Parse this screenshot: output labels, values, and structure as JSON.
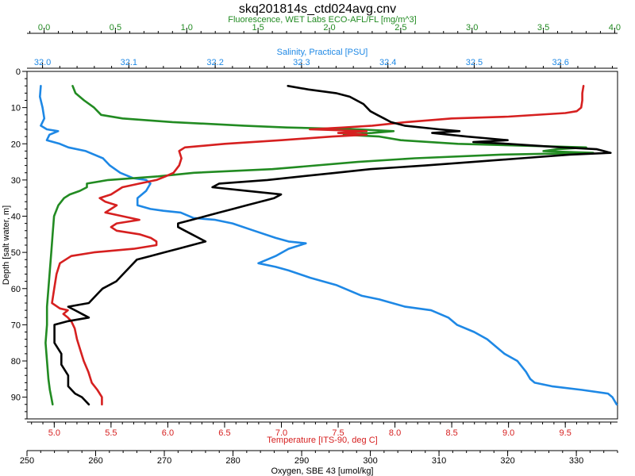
{
  "chart_data": {
    "type": "line",
    "title": "skq201814s_ctd024avg.cnv",
    "y_axis": {
      "label": "Depth [salt water, m]",
      "range": [
        0,
        96
      ],
      "inverted": true,
      "ticks": [
        0,
        10,
        20,
        30,
        40,
        50,
        60,
        70,
        80,
        90
      ]
    },
    "x_axes": [
      {
        "id": "fluorescence",
        "label": "Fluorescence, WET Labs ECO-AFL/FL [mg/m^3]",
        "position": "top-outer",
        "color": "#228b22",
        "range": [
          -0.12,
          4.02
        ],
        "ticks": [
          0.0,
          0.5,
          1.0,
          1.5,
          2.0,
          2.5,
          3.0,
          3.5,
          4.0
        ],
        "tick_labels": [
          "0.0",
          "0.5",
          "1.0",
          "1.5",
          "2.0",
          "2.5",
          "3.0",
          "3.5",
          "4.0"
        ]
      },
      {
        "id": "salinity",
        "label": "Salinity, Practical [PSU]",
        "position": "top-inner",
        "color": "#1e88e5",
        "range": [
          31.982,
          32.666
        ],
        "ticks": [
          32.0,
          32.1,
          32.2,
          32.3,
          32.4,
          32.5,
          32.6
        ],
        "tick_labels": [
          "32.0",
          "32.1",
          "32.2",
          "32.3",
          "32.4",
          "32.5",
          "32.6"
        ]
      },
      {
        "id": "temperature",
        "label": "Temperature [ITS-90, deg C]",
        "position": "bottom-inner",
        "color": "#d62020",
        "range": [
          4.76,
          9.96
        ],
        "ticks": [
          5.0,
          5.5,
          6.0,
          6.5,
          7.0,
          7.5,
          8.0,
          8.5,
          9.0,
          9.5
        ],
        "tick_labels": [
          "5.0",
          "5.5",
          "6.0",
          "6.5",
          "7.0",
          "7.5",
          "8.0",
          "8.5",
          "9.0",
          "9.5"
        ]
      },
      {
        "id": "oxygen",
        "label": "Oxygen, SBE 43 [umol/kg]",
        "position": "bottom-outer",
        "color": "#000000",
        "range": [
          250.0,
          336.0
        ],
        "ticks": [
          250,
          260,
          270,
          280,
          290,
          300,
          310,
          320,
          330
        ],
        "tick_labels": [
          "250",
          "260",
          "270",
          "280",
          "290",
          "300",
          "310",
          "320",
          "330"
        ]
      }
    ],
    "series": [
      {
        "axis": "salinity",
        "color": "#1e88e5",
        "points": [
          [
            31.998,
            4
          ],
          [
            31.997,
            7
          ],
          [
            32.0,
            10
          ],
          [
            32.002,
            13
          ],
          [
            31.998,
            15
          ],
          [
            32.005,
            16
          ],
          [
            32.018,
            16.5
          ],
          [
            32.008,
            17.5
          ],
          [
            32.005,
            19
          ],
          [
            32.02,
            20
          ],
          [
            32.03,
            21
          ],
          [
            32.05,
            22
          ],
          [
            32.07,
            24
          ],
          [
            32.078,
            26
          ],
          [
            32.09,
            28
          ],
          [
            32.105,
            29.5
          ],
          [
            32.12,
            30
          ],
          [
            32.125,
            31
          ],
          [
            32.12,
            33
          ],
          [
            32.11,
            35
          ],
          [
            32.11,
            37
          ],
          [
            32.125,
            38
          ],
          [
            32.14,
            38.5
          ],
          [
            32.16,
            39
          ],
          [
            32.175,
            40.5
          ],
          [
            32.2,
            41
          ],
          [
            32.22,
            42
          ],
          [
            32.245,
            44
          ],
          [
            32.27,
            46
          ],
          [
            32.285,
            47
          ],
          [
            32.305,
            47.5
          ],
          [
            32.285,
            49
          ],
          [
            32.27,
            51
          ],
          [
            32.26,
            52
          ],
          [
            32.25,
            53
          ],
          [
            32.27,
            54
          ],
          [
            32.285,
            55
          ],
          [
            32.31,
            57
          ],
          [
            32.34,
            59
          ],
          [
            32.37,
            62
          ],
          [
            32.39,
            63
          ],
          [
            32.42,
            65
          ],
          [
            32.45,
            66
          ],
          [
            32.47,
            68
          ],
          [
            32.48,
            70
          ],
          [
            32.5,
            72
          ],
          [
            32.515,
            74
          ],
          [
            32.525,
            76
          ],
          [
            32.535,
            78
          ],
          [
            32.55,
            80
          ],
          [
            32.56,
            83
          ],
          [
            32.565,
            85
          ],
          [
            32.57,
            86
          ],
          [
            32.59,
            87
          ],
          [
            32.625,
            88
          ],
          [
            32.655,
            89
          ],
          [
            32.66,
            90
          ],
          [
            32.665,
            92
          ]
        ]
      },
      {
        "axis": "fluorescence",
        "color": "#228b22",
        "points": [
          [
            0.2,
            4
          ],
          [
            0.22,
            6
          ],
          [
            0.28,
            8
          ],
          [
            0.35,
            10
          ],
          [
            0.4,
            12
          ],
          [
            0.55,
            13
          ],
          [
            0.9,
            14
          ],
          [
            1.4,
            15
          ],
          [
            1.7,
            15.5
          ],
          [
            2.2,
            16
          ],
          [
            2.45,
            16.5
          ],
          [
            2.3,
            17
          ],
          [
            2.1,
            17.5
          ],
          [
            2.35,
            18
          ],
          [
            2.5,
            19
          ],
          [
            2.9,
            20
          ],
          [
            3.8,
            21
          ],
          [
            3.6,
            21.5
          ],
          [
            3.5,
            22
          ],
          [
            3.85,
            22.5
          ],
          [
            3.2,
            23
          ],
          [
            2.6,
            24
          ],
          [
            2.2,
            25
          ],
          [
            1.6,
            27
          ],
          [
            1.05,
            28
          ],
          [
            0.8,
            29
          ],
          [
            0.45,
            30
          ],
          [
            0.3,
            31
          ],
          [
            0.3,
            32
          ],
          [
            0.25,
            33
          ],
          [
            0.18,
            34
          ],
          [
            0.14,
            35
          ],
          [
            0.1,
            37
          ],
          [
            0.07,
            40
          ],
          [
            0.06,
            45
          ],
          [
            0.05,
            50
          ],
          [
            0.04,
            55
          ],
          [
            0.03,
            60
          ],
          [
            0.02,
            65
          ],
          [
            0.02,
            70
          ],
          [
            0.01,
            75
          ],
          [
            0.02,
            80
          ],
          [
            0.03,
            85
          ],
          [
            0.04,
            88
          ],
          [
            0.05,
            90
          ],
          [
            0.06,
            92
          ]
        ]
      },
      {
        "axis": "temperature",
        "color": "#d62020",
        "points": [
          [
            9.66,
            4
          ],
          [
            9.65,
            6
          ],
          [
            9.65,
            8
          ],
          [
            9.64,
            10
          ],
          [
            9.6,
            11
          ],
          [
            9.5,
            11.5
          ],
          [
            9.0,
            12.5
          ],
          [
            8.5,
            13
          ],
          [
            8.1,
            14
          ],
          [
            7.8,
            15
          ],
          [
            7.55,
            15.5
          ],
          [
            7.25,
            16
          ],
          [
            7.75,
            16.5
          ],
          [
            7.5,
            17
          ],
          [
            7.75,
            17.5
          ],
          [
            7.45,
            18
          ],
          [
            7.0,
            19
          ],
          [
            6.5,
            20
          ],
          [
            6.15,
            21
          ],
          [
            6.1,
            22
          ],
          [
            6.12,
            24
          ],
          [
            6.1,
            26
          ],
          [
            6.05,
            28
          ],
          [
            5.98,
            29
          ],
          [
            5.9,
            30
          ],
          [
            5.75,
            31
          ],
          [
            5.6,
            32
          ],
          [
            5.5,
            34
          ],
          [
            5.4,
            35
          ],
          [
            5.45,
            36
          ],
          [
            5.55,
            37
          ],
          [
            5.5,
            38
          ],
          [
            5.45,
            39
          ],
          [
            5.6,
            40
          ],
          [
            5.75,
            41
          ],
          [
            5.55,
            42
          ],
          [
            5.5,
            43
          ],
          [
            5.55,
            44
          ],
          [
            5.75,
            45
          ],
          [
            5.85,
            46
          ],
          [
            5.9,
            47
          ],
          [
            5.9,
            48
          ],
          [
            5.7,
            49
          ],
          [
            5.35,
            50
          ],
          [
            5.15,
            51
          ],
          [
            5.05,
            53
          ],
          [
            5.02,
            56
          ],
          [
            5.0,
            60
          ],
          [
            4.98,
            64
          ],
          [
            5.05,
            65.5
          ],
          [
            5.12,
            66
          ],
          [
            5.08,
            67
          ],
          [
            5.12,
            68
          ],
          [
            5.15,
            69
          ],
          [
            5.18,
            71
          ],
          [
            5.2,
            74
          ],
          [
            5.23,
            77
          ],
          [
            5.26,
            80
          ],
          [
            5.3,
            83
          ],
          [
            5.33,
            86
          ],
          [
            5.38,
            88
          ],
          [
            5.42,
            90
          ],
          [
            5.42,
            92
          ]
        ]
      },
      {
        "axis": "oxygen",
        "color": "#000000",
        "points": [
          [
            288,
            4
          ],
          [
            291,
            5
          ],
          [
            295,
            6
          ],
          [
            297,
            7
          ],
          [
            299,
            9
          ],
          [
            300,
            11
          ],
          [
            301,
            12
          ],
          [
            302,
            13
          ],
          [
            303,
            14
          ],
          [
            305,
            15
          ],
          [
            310,
            16
          ],
          [
            313,
            16.5
          ],
          [
            309,
            17
          ],
          [
            314,
            18
          ],
          [
            320,
            19
          ],
          [
            315,
            19.5
          ],
          [
            320,
            20
          ],
          [
            328,
            21
          ],
          [
            333,
            21.5
          ],
          [
            334,
            22
          ],
          [
            335,
            22.5
          ],
          [
            329,
            23
          ],
          [
            322,
            24
          ],
          [
            315,
            25
          ],
          [
            308,
            26
          ],
          [
            300,
            27
          ],
          [
            295,
            28
          ],
          [
            290,
            29
          ],
          [
            285,
            30
          ],
          [
            278,
            31
          ],
          [
            277,
            32
          ],
          [
            282,
            33
          ],
          [
            287,
            34
          ],
          [
            286,
            35
          ],
          [
            284,
            36
          ],
          [
            282,
            37
          ],
          [
            280,
            38
          ],
          [
            278,
            39
          ],
          [
            276,
            40
          ],
          [
            274,
            41
          ],
          [
            272,
            42
          ],
          [
            272,
            43
          ],
          [
            273,
            44
          ],
          [
            274,
            45
          ],
          [
            275,
            46
          ],
          [
            276,
            47
          ],
          [
            274,
            48
          ],
          [
            272,
            49
          ],
          [
            270,
            50
          ],
          [
            268,
            51
          ],
          [
            266,
            52
          ],
          [
            265,
            54
          ],
          [
            264,
            56
          ],
          [
            263,
            58
          ],
          [
            261,
            60
          ],
          [
            260,
            62
          ],
          [
            259,
            64
          ],
          [
            256,
            65
          ],
          [
            257,
            66
          ],
          [
            258,
            67
          ],
          [
            259,
            68
          ],
          [
            256,
            69
          ],
          [
            254,
            70
          ],
          [
            254,
            72
          ],
          [
            254,
            75
          ],
          [
            255,
            78
          ],
          [
            255,
            81
          ],
          [
            256,
            84
          ],
          [
            256,
            87
          ],
          [
            257,
            89
          ],
          [
            258,
            90
          ],
          [
            259,
            92
          ]
        ]
      }
    ]
  }
}
